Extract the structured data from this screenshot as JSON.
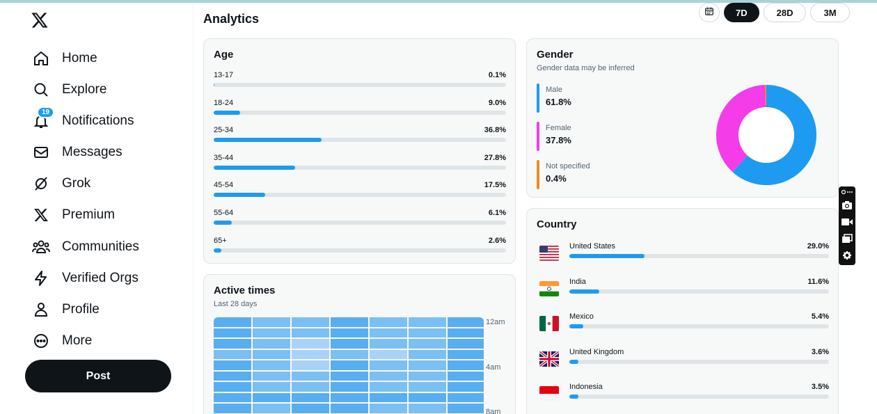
{
  "nav": {
    "items": [
      {
        "label": "Home",
        "icon": "home-icon"
      },
      {
        "label": "Explore",
        "icon": "search-icon"
      },
      {
        "label": "Notifications",
        "icon": "bell-icon",
        "badge": "19"
      },
      {
        "label": "Messages",
        "icon": "mail-icon"
      },
      {
        "label": "Grok",
        "icon": "grok-icon"
      },
      {
        "label": "Premium",
        "icon": "x-logo-icon"
      },
      {
        "label": "Communities",
        "icon": "people-icon"
      },
      {
        "label": "Verified Orgs",
        "icon": "lightning-icon"
      },
      {
        "label": "Profile",
        "icon": "person-icon"
      },
      {
        "label": "More",
        "icon": "more-circle-icon"
      }
    ],
    "post_label": "Post"
  },
  "header": {
    "title": "Analytics",
    "ranges": [
      "7D",
      "28D",
      "3M"
    ],
    "active_range": "7D"
  },
  "age": {
    "title": "Age",
    "rows": [
      {
        "label": "13-17",
        "value": "0.1%",
        "pct": 0.1
      },
      {
        "label": "18-24",
        "value": "9.0%",
        "pct": 9.0
      },
      {
        "label": "25-34",
        "value": "36.8%",
        "pct": 36.8
      },
      {
        "label": "35-44",
        "value": "27.8%",
        "pct": 27.8
      },
      {
        "label": "45-54",
        "value": "17.5%",
        "pct": 17.5
      },
      {
        "label": "55-64",
        "value": "6.1%",
        "pct": 6.1
      },
      {
        "label": "65+",
        "value": "2.6%",
        "pct": 2.6
      }
    ]
  },
  "gender": {
    "title": "Gender",
    "subtitle": "Gender data may be inferred",
    "items": [
      {
        "label": "Male",
        "value": "61.8%",
        "pct": 61.8,
        "color": "#1d9bf0"
      },
      {
        "label": "Female",
        "value": "37.8%",
        "pct": 37.8,
        "color": "#f43ce8"
      },
      {
        "label": "Not specified",
        "value": "0.4%",
        "pct": 0.4,
        "color": "#f08a24"
      }
    ]
  },
  "country": {
    "title": "Country",
    "rows": [
      {
        "name": "United States",
        "value": "29.0%",
        "pct": 29.0,
        "flag": "us-flag-icon"
      },
      {
        "name": "India",
        "value": "11.6%",
        "pct": 11.6,
        "flag": "india-flag-icon"
      },
      {
        "name": "Mexico",
        "value": "5.4%",
        "pct": 5.4,
        "flag": "mexico-flag-icon"
      },
      {
        "name": "United Kingdom",
        "value": "3.6%",
        "pct": 3.6,
        "flag": "uk-flag-icon"
      },
      {
        "name": "Indonesia",
        "value": "3.5%",
        "pct": 3.5,
        "flag": "indonesia-flag-icon"
      }
    ]
  },
  "active_times": {
    "title": "Active times",
    "subtitle": "Last 28 days",
    "time_labels": [
      "12am",
      "4am",
      "8am"
    ],
    "intensity": [
      [
        3,
        2,
        2,
        3,
        2,
        2,
        3
      ],
      [
        3,
        2,
        2,
        3,
        2,
        2,
        3
      ],
      [
        3,
        2,
        1,
        3,
        2,
        2,
        3
      ],
      [
        2,
        2,
        1,
        2,
        1,
        2,
        3
      ],
      [
        3,
        2,
        1,
        3,
        2,
        2,
        3
      ],
      [
        3,
        2,
        2,
        3,
        2,
        2,
        3
      ],
      [
        3,
        2,
        2,
        3,
        2,
        2,
        3
      ],
      [
        3,
        3,
        3,
        3,
        3,
        3,
        3
      ],
      [
        3,
        2,
        3,
        3,
        2,
        2,
        3
      ],
      [
        3,
        3,
        3,
        3,
        3,
        3,
        3
      ]
    ]
  },
  "colors": {
    "accent": "#1d9bf0",
    "heat_levels": [
      "#d4e9fb",
      "#a8d3f7",
      "#7cbff2",
      "#58aef0"
    ]
  }
}
